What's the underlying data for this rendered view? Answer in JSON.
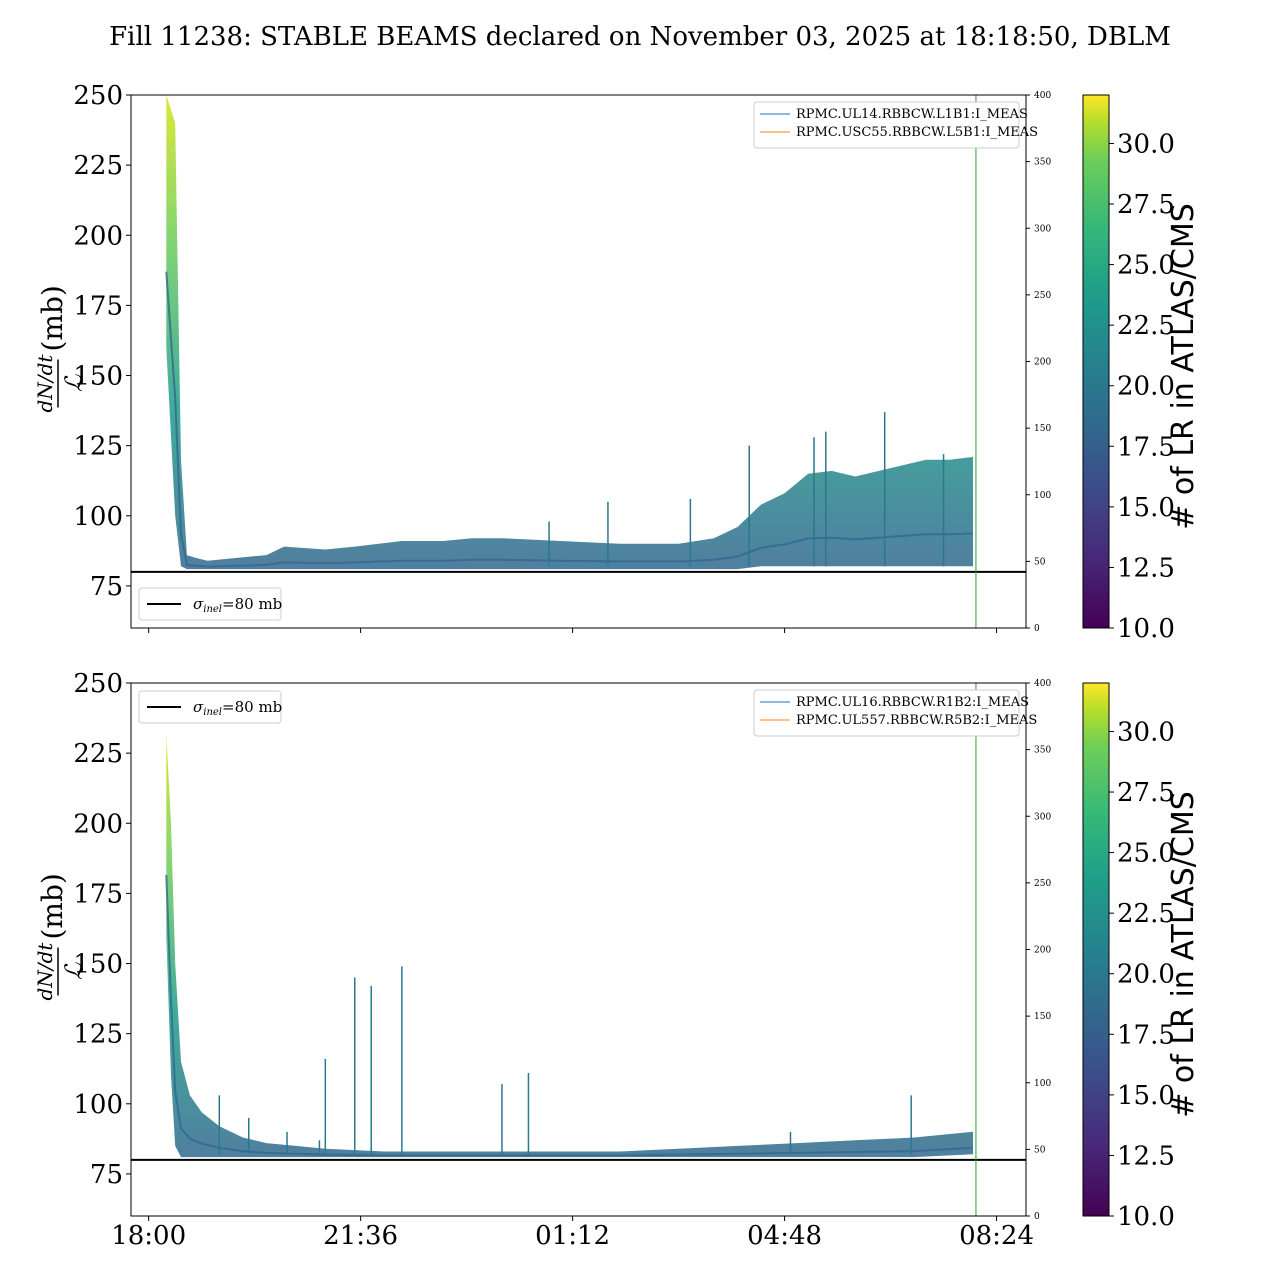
{
  "figure": {
    "title": "Fill 11238: STABLE BEAMS declared on November 03, 2025 at 18:18:50, DBLM"
  },
  "chart_data": [
    {
      "type": "line",
      "panel": "top",
      "ylabel_main": "dN/dt",
      "ylabel_frac_denominator": "ℒ",
      "ylabel_unit": "(mb)",
      "ylim": [
        60,
        250
      ],
      "yticks": [
        75,
        100,
        125,
        150,
        175,
        200,
        225,
        250
      ],
      "secondary_ylim": [
        0,
        400
      ],
      "secondary_yticks": [
        0,
        50,
        100,
        150,
        200,
        250,
        300,
        350,
        400
      ],
      "xlim_hours": [
        -0.3,
        14.9
      ],
      "xticks_hours": [
        0,
        3.6,
        7.2,
        10.8,
        14.4
      ],
      "xtick_labels": [
        "18:00",
        "21:36",
        "01:12",
        "04:48",
        "08:24"
      ],
      "xtick_labels_shown": false,
      "grid": false,
      "reference_line": {
        "value": 80,
        "label": "σinel=80 mb",
        "label_parts": [
          "σ",
          "inel",
          "=80 mb"
        ]
      },
      "reference_legend_position": "lower-left",
      "vertical_line_hours": 14.05,
      "legend_position": "upper-right",
      "legend": [
        {
          "label": "RPMC.UL14.RBBCW.L1B1:I_MEAS",
          "color": "#1f77b4"
        },
        {
          "label": "RPMC.USC55.RBBCW.L5B1:I_MEAS",
          "color": "#ff7f0e"
        }
      ],
      "series_envelope": {
        "x_hours": [
          0.3,
          0.45,
          0.55,
          0.65,
          0.8,
          1.0,
          1.5,
          2.0,
          2.3,
          3.0,
          3.5,
          4.3,
          5.0,
          5.5,
          6.0,
          7.0,
          8.0,
          9.0,
          9.6,
          10.0,
          10.4,
          10.8,
          11.2,
          11.6,
          12.0,
          12.6,
          13.2,
          13.6,
          14.0
        ],
        "y_low": [
          160,
          100,
          82,
          81,
          81,
          81,
          81,
          81,
          81,
          81,
          81,
          81,
          81,
          81,
          81,
          81,
          81,
          81,
          81,
          81,
          82,
          82,
          82,
          82,
          82,
          82,
          82,
          82,
          82
        ],
        "y_high": [
          250,
          240,
          120,
          86,
          85,
          84,
          85,
          86,
          89,
          88,
          89,
          91,
          91,
          92,
          92,
          91,
          90,
          90,
          92,
          96,
          104,
          108,
          115,
          116,
          114,
          117,
          120,
          120,
          121
        ]
      },
      "spikes": [
        {
          "x_hours": 9.2,
          "y": 106
        },
        {
          "x_hours": 10.2,
          "y": 125
        },
        {
          "x_hours": 11.3,
          "y": 128
        },
        {
          "x_hours": 11.5,
          "y": 130
        },
        {
          "x_hours": 12.5,
          "y": 137
        },
        {
          "x_hours": 13.5,
          "y": 122
        },
        {
          "x_hours": 7.8,
          "y": 105
        },
        {
          "x_hours": 6.8,
          "y": 98
        }
      ],
      "colorbar": {
        "label": "# of LR in ATLAS/CMS",
        "range": [
          10.0,
          32.0
        ],
        "ticks": [
          "10.0",
          "12.5",
          "15.0",
          "17.5",
          "20.0",
          "22.5",
          "25.0",
          "27.5",
          "30.0"
        ],
        "colormap": "viridis"
      }
    },
    {
      "type": "line",
      "panel": "bottom",
      "ylabel_main": "dN/dt",
      "ylabel_frac_denominator": "ℒ",
      "ylabel_unit": "(mb)",
      "ylim": [
        60,
        250
      ],
      "yticks": [
        75,
        100,
        125,
        150,
        175,
        200,
        225,
        250
      ],
      "secondary_ylim": [
        0,
        400
      ],
      "secondary_yticks": [
        0,
        50,
        100,
        150,
        200,
        250,
        300,
        350,
        400
      ],
      "xlim_hours": [
        -0.3,
        14.9
      ],
      "xticks_hours": [
        0,
        3.6,
        7.2,
        10.8,
        14.4
      ],
      "xtick_labels": [
        "18:00",
        "21:36",
        "01:12",
        "04:48",
        "08:24"
      ],
      "xtick_labels_shown": true,
      "grid": false,
      "reference_line": {
        "value": 80,
        "label": "σinel=80 mb",
        "label_parts": [
          "σ",
          "inel",
          "=80 mb"
        ]
      },
      "reference_legend_position": "upper-left",
      "vertical_line_hours": 14.05,
      "legend_position": "upper-right",
      "legend": [
        {
          "label": "RPMC.UL16.RBBCW.R1B2:I_MEAS",
          "color": "#1f77b4"
        },
        {
          "label": "RPMC.UL557.RBBCW.R5B2:I_MEAS",
          "color": "#ff7f0e"
        }
      ],
      "series_envelope": {
        "x_hours": [
          0.3,
          0.38,
          0.45,
          0.55,
          0.7,
          0.9,
          1.2,
          1.6,
          2.0,
          2.5,
          3.0,
          4.0,
          5.0,
          6.0,
          7.0,
          8.0,
          9.0,
          10.0,
          11.0,
          12.0,
          13.0,
          14.0
        ],
        "y_low": [
          160,
          110,
          85,
          81,
          81,
          81,
          81,
          81,
          81,
          81,
          81,
          81,
          81,
          81,
          81,
          81,
          81,
          81,
          81,
          81,
          81,
          82
        ],
        "y_high": [
          232,
          200,
          150,
          115,
          103,
          97,
          92,
          88,
          86,
          85,
          84,
          83,
          83,
          83,
          83,
          83,
          84,
          85,
          86,
          87,
          88,
          90
        ]
      },
      "spikes": [
        {
          "x_hours": 1.2,
          "y": 103
        },
        {
          "x_hours": 1.7,
          "y": 95
        },
        {
          "x_hours": 2.35,
          "y": 90
        },
        {
          "x_hours": 2.9,
          "y": 87
        },
        {
          "x_hours": 3.0,
          "y": 116
        },
        {
          "x_hours": 3.5,
          "y": 145
        },
        {
          "x_hours": 3.78,
          "y": 142
        },
        {
          "x_hours": 4.3,
          "y": 149
        },
        {
          "x_hours": 6.0,
          "y": 107
        },
        {
          "x_hours": 6.45,
          "y": 111
        },
        {
          "x_hours": 10.9,
          "y": 90
        },
        {
          "x_hours": 12.95,
          "y": 103
        }
      ],
      "colorbar": {
        "label": "# of LR in ATLAS/CMS",
        "range": [
          10.0,
          32.0
        ],
        "ticks": [
          "10.0",
          "12.5",
          "15.0",
          "17.5",
          "20.0",
          "22.5",
          "25.0",
          "27.5",
          "30.0"
        ],
        "colormap": "viridis"
      }
    }
  ]
}
